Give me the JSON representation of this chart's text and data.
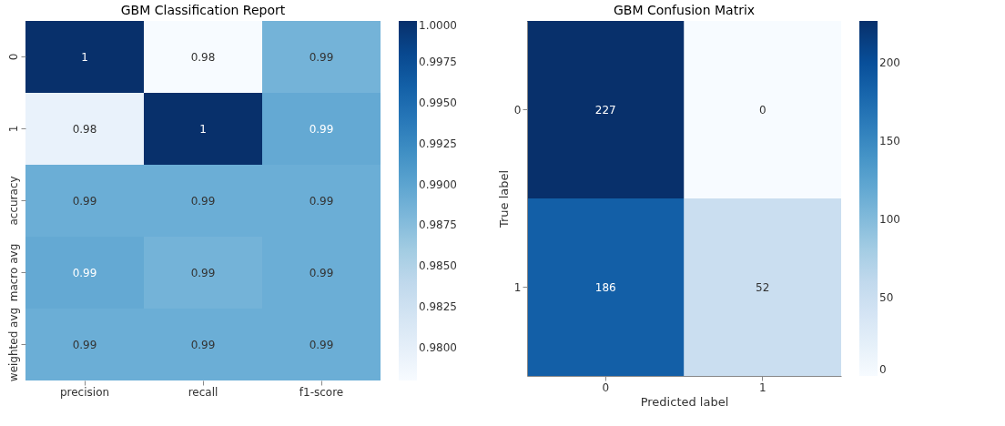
{
  "chart_data": [
    {
      "type": "heatmap",
      "title": "GBM Classification Report",
      "categories": [
        "precision",
        "recall",
        "f1-score"
      ],
      "y_categories": [
        "0",
        "1",
        "accuracy",
        "macro avg",
        "weighted avg"
      ],
      "cells": [
        [
          1.0,
          0.978,
          0.9885
        ],
        [
          0.9795,
          1.0,
          0.9895
        ],
        [
          0.989,
          0.989,
          0.989
        ],
        [
          0.9895,
          0.9885,
          0.989
        ],
        [
          0.989,
          0.989,
          0.989
        ]
      ],
      "cell_labels": [
        [
          "1",
          "0.98",
          "0.99"
        ],
        [
          "0.98",
          "1",
          "0.99"
        ],
        [
          "0.99",
          "0.99",
          "0.99"
        ],
        [
          "0.99",
          "0.99",
          "0.99"
        ],
        [
          "0.99",
          "0.99",
          "0.99"
        ]
      ],
      "clim": [
        0.978,
        1.0
      ],
      "cticks": [
        {
          "value": 0.98,
          "label": "0.9800"
        },
        {
          "value": 0.9825,
          "label": "0.9825"
        },
        {
          "value": 0.985,
          "label": "0.9850"
        },
        {
          "value": 0.9875,
          "label": "0.9875"
        },
        {
          "value": 0.99,
          "label": "0.9900"
        },
        {
          "value": 0.9925,
          "label": "0.9925"
        },
        {
          "value": 0.995,
          "label": "0.9950"
        },
        {
          "value": 0.9975,
          "label": "0.9975"
        },
        {
          "value": 1.0,
          "label": "1.0000"
        }
      ]
    },
    {
      "type": "heatmap",
      "title": "GBM Confusion Matrix",
      "xlabel": "Predicted label",
      "ylabel": "True label",
      "categories": [
        "0",
        "1"
      ],
      "y_categories": [
        "0",
        "1"
      ],
      "cells": [
        [
          227,
          0
        ],
        [
          186,
          52
        ]
      ],
      "data_labels": true,
      "clim": [
        0,
        227
      ],
      "cticks": [
        0,
        50,
        100,
        150,
        200
      ]
    }
  ]
}
